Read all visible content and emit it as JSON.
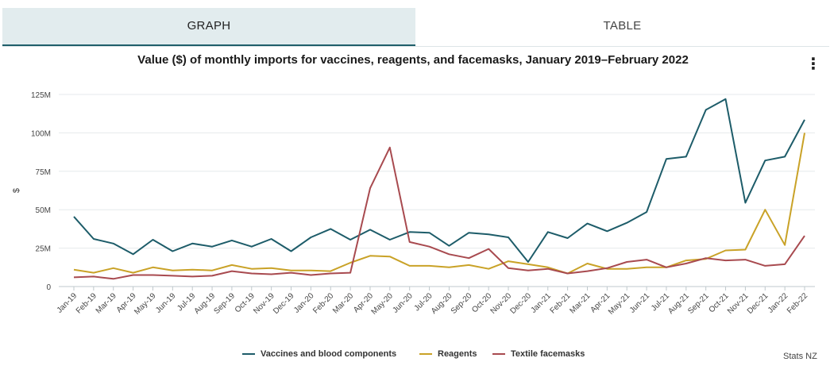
{
  "tabs": [
    {
      "label": "GRAPH"
    },
    {
      "label": "TABLE"
    }
  ],
  "menu_icon": "vertical-ellipsis-icon",
  "menu_glyph": "⋮",
  "credit": "Stats NZ",
  "chart_data": {
    "type": "line",
    "title": "Value ($) of monthly imports for vaccines, reagents, and facemasks, January 2019–February 2022",
    "xlabel": "",
    "ylabel": "$",
    "ylim": [
      0,
      125000000
    ],
    "yticks": [
      {
        "value": 0,
        "label": "0"
      },
      {
        "value": 25000000,
        "label": "25M"
      },
      {
        "value": 50000000,
        "label": "50M"
      },
      {
        "value": 75000000,
        "label": "75M"
      },
      {
        "value": 100000000,
        "label": "100M"
      },
      {
        "value": 125000000,
        "label": "125M"
      }
    ],
    "categories": [
      "Jan-19",
      "Feb-19",
      "Mar-19",
      "Apr-19",
      "May-19",
      "Jun-19",
      "Jul-19",
      "Aug-19",
      "Sep-19",
      "Oct-19",
      "Nov-19",
      "Dec-19",
      "Jan-20",
      "Feb-20",
      "Mar-20",
      "Apr-20",
      "May-20",
      "Jun-20",
      "Jul-20",
      "Aug-20",
      "Sep-20",
      "Oct-20",
      "Nov-20",
      "Dec-20",
      "Jan-21",
      "Feb-21",
      "Mar-21",
      "Apr-21",
      "May-21",
      "Jun-21",
      "Jul-21",
      "Aug-21",
      "Sep-21",
      "Oct-21",
      "Nov-21",
      "Dec-21",
      "Jan-22",
      "Feb-22"
    ],
    "series": [
      {
        "name": "Vaccines and blood components",
        "color": "#1d5c69",
        "values": [
          45500000,
          31000000,
          28000000,
          21000000,
          30500000,
          23000000,
          28000000,
          26000000,
          30000000,
          26000000,
          31000000,
          23000000,
          32000000,
          37500000,
          30500000,
          37000000,
          30500000,
          35500000,
          35000000,
          26500000,
          35000000,
          34000000,
          32000000,
          16000000,
          35500000,
          31500000,
          41000000,
          36000000,
          41500000,
          48500000,
          83000000,
          84500000,
          115000000,
          122000000,
          54500000,
          82000000,
          84500000,
          108500000
        ]
      },
      {
        "name": "Reagents",
        "color": "#c9a227",
        "values": [
          11000000,
          9000000,
          12000000,
          9000000,
          12500000,
          10500000,
          11000000,
          10500000,
          14000000,
          11500000,
          12000000,
          10500000,
          10500000,
          10000000,
          15500000,
          20000000,
          19500000,
          13500000,
          13500000,
          12500000,
          14000000,
          11500000,
          16500000,
          14500000,
          12500000,
          8500000,
          15000000,
          11500000,
          11500000,
          12500000,
          12500000,
          17000000,
          18000000,
          23500000,
          24000000,
          50000000,
          27000000,
          100000000
        ]
      },
      {
        "name": "Textile facemasks",
        "color": "#a84a4f",
        "values": [
          6000000,
          6500000,
          5000000,
          7500000,
          7500000,
          7000000,
          6500000,
          7000000,
          10000000,
          8500000,
          8000000,
          9000000,
          7500000,
          8500000,
          9000000,
          64000000,
          90500000,
          29000000,
          26000000,
          21000000,
          18500000,
          24500000,
          12000000,
          10500000,
          11500000,
          8500000,
          10000000,
          12000000,
          16000000,
          17500000,
          12500000,
          15000000,
          18500000,
          17000000,
          17500000,
          13500000,
          14500000,
          33000000
        ]
      }
    ]
  }
}
